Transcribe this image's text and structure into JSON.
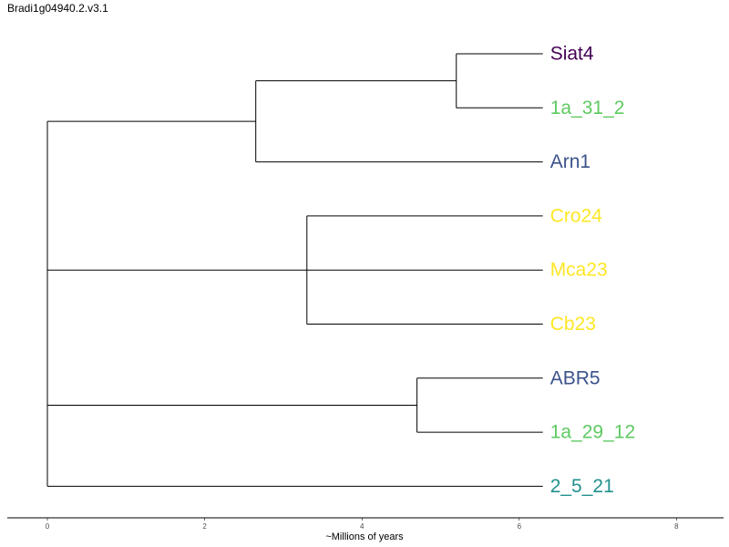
{
  "title": "Bradi1g04940.2.v3.1",
  "chart_data": {
    "type": "dendrogram",
    "xlabel": "~Millions of years",
    "xlim": [
      -0.5,
      8.6
    ],
    "xticks": [
      0,
      2,
      4,
      6,
      8
    ],
    "tips": [
      {
        "name": "Siat4",
        "color": "#440154"
      },
      {
        "name": "1a_31_2",
        "color": "#5ec962"
      },
      {
        "name": "Arn1",
        "color": "#3b528b"
      },
      {
        "name": "Cro24",
        "color": "#fde725"
      },
      {
        "name": "Mca23",
        "color": "#fde725"
      },
      {
        "name": "Cb23",
        "color": "#fde725"
      },
      {
        "name": "ABR5",
        "color": "#3b528b"
      },
      {
        "name": "1a_29_12",
        "color": "#5ec962"
      },
      {
        "name": "2_5_21",
        "color": "#21918c"
      }
    ],
    "tip_depth": 6.3,
    "tree": {
      "depth": 0,
      "children": [
        {
          "depth": 2.65,
          "children": [
            {
              "depth": 5.2,
              "children": [
                {
                  "tip": "Siat4"
                },
                {
                  "tip": "1a_31_2"
                }
              ]
            },
            {
              "tip": "Arn1"
            }
          ]
        },
        {
          "depth": 3.3,
          "children": [
            {
              "tip": "Cro24"
            },
            {
              "tip": "Mca23"
            },
            {
              "tip": "Cb23"
            }
          ]
        },
        {
          "depth": 4.7,
          "children": [
            {
              "tip": "ABR5"
            },
            {
              "tip": "1a_29_12"
            }
          ]
        },
        {
          "tip": "2_5_21"
        }
      ]
    }
  }
}
